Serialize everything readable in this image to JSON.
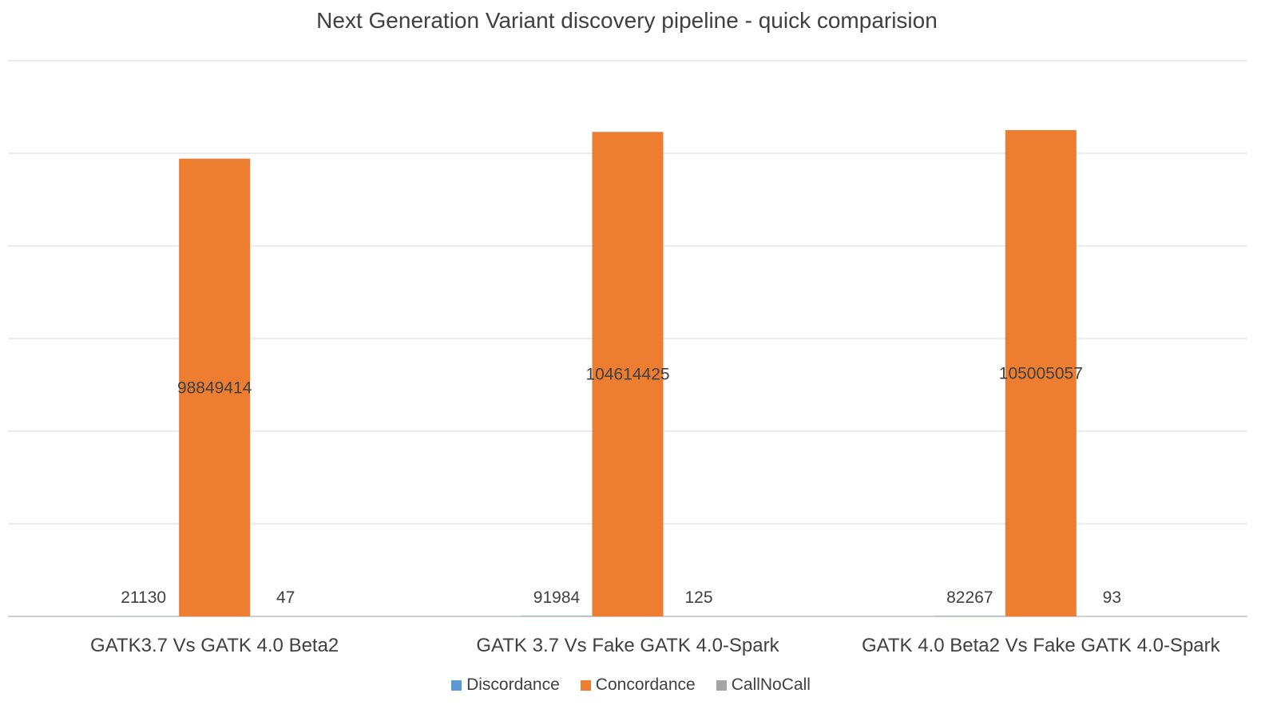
{
  "chart_data": {
    "type": "bar",
    "title": "Next Generation Variant discovery pipeline - quick comparision",
    "xlabel": "",
    "ylabel": "",
    "categories": [
      "GATK3.7 Vs GATK 4.0 Beta2",
      "GATK 3.7 Vs Fake GATK 4.0-Spark",
      "GATK 4.0 Beta2 Vs Fake GATK 4.0-Spark"
    ],
    "series": [
      {
        "name": "Discordance",
        "color": "#5B9BD5",
        "values": [
          21130,
          91984,
          82267
        ]
      },
      {
        "name": "Concordance",
        "color": "#ED7D31",
        "values": [
          98849414,
          104614425,
          105005057
        ]
      },
      {
        "name": "CallNoCall",
        "color": "#A5A5A5",
        "values": [
          47,
          125,
          93
        ]
      }
    ],
    "ylim": [
      0,
      120000000
    ],
    "gridlines": true,
    "y_tick_labels_shown": false,
    "legend_position": "bottom",
    "data_labels": true,
    "data_label_text": [
      [
        "21130",
        "91984",
        "82267"
      ],
      [
        "98849414",
        "104614425",
        "105005057"
      ],
      [
        "47",
        "125",
        "93"
      ]
    ]
  }
}
